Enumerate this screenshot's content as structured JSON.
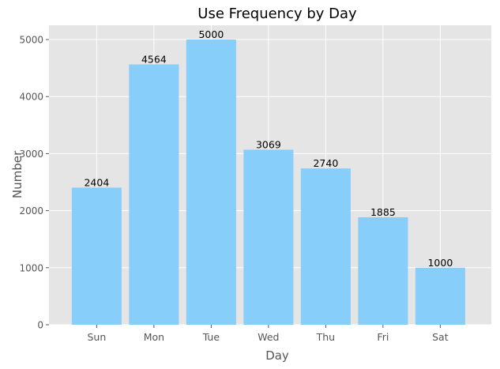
{
  "chart_data": {
    "type": "bar",
    "title": "Use Frequency by Day",
    "xlabel": "Day",
    "ylabel": "Number",
    "categories": [
      "Sun",
      "Mon",
      "Tue",
      "Wed",
      "Thu",
      "Fri",
      "Sat"
    ],
    "values": [
      2404,
      4564,
      5000,
      3069,
      2740,
      1885,
      1000
    ],
    "data_labels": [
      "2404",
      "4564",
      "5000",
      "3069",
      "2740",
      "1885",
      "1000"
    ],
    "ylim": [
      0,
      5250
    ],
    "yticks": [
      0,
      1000,
      2000,
      3000,
      4000,
      5000
    ],
    "ytick_labels": [
      "0",
      "1000",
      "2000",
      "3000",
      "4000",
      "5000"
    ],
    "grid": true,
    "colors": {
      "bar": "#87cefa",
      "plot_background": "#e5e5e5",
      "grid": "#ffffff",
      "tick_text": "#555555",
      "label_text": "#555555",
      "title_text": "#000000",
      "data_label_text": "#000000"
    }
  }
}
